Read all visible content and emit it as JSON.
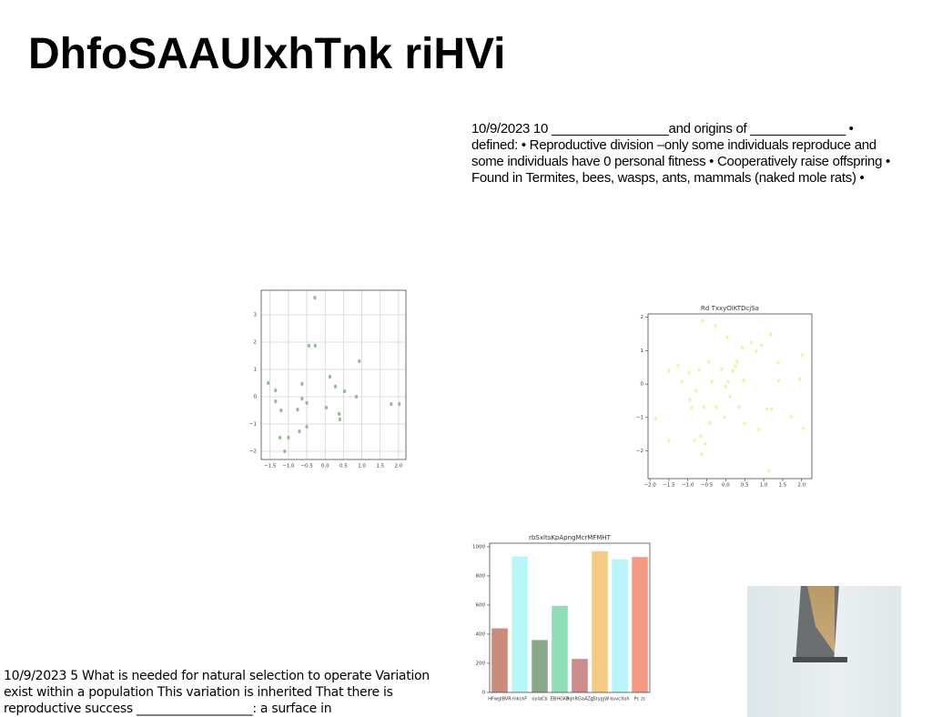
{
  "title": "DhfoSAAUlxhTnk riHVi",
  "text_right": [
    "10/9/2023 10 ________________and origins of _____________ •",
    "defined: • Reproductive division –only some individuals reproduce and",
    "some individuals have 0 personal fitness • Cooperatively raise offspring •",
    "Found in Termites, bees, wasps, ants, mammals (naked mole rats) •"
  ],
  "text_left": [
    "10/9/2023 5 What is needed for natural selection to operate Variation",
    "exist within a population This variation is inherited That there is",
    "reproductive success ___________________: a surface in"
  ],
  "chart_data": [
    {
      "type": "scatter",
      "color": "#8fbf8f",
      "grid": true,
      "xlim": [
        -1.74,
        2.2
      ],
      "ylim": [
        -2.3,
        3.9
      ],
      "xticks": [
        {
          "value": -1.5,
          "label": "−1.5"
        },
        {
          "value": -1.0,
          "label": "−1.0"
        },
        {
          "value": -0.5,
          "label": "−0.5"
        },
        {
          "value": 0,
          "label": "0.0"
        },
        0.5,
        {
          "value": 1,
          "label": "1.0"
        },
        1.5,
        {
          "value": 2,
          "label": "2.0"
        }
      ],
      "yticks": [
        {
          "value": -2,
          "label": "−2"
        },
        {
          "value": -1,
          "label": "−1"
        },
        0,
        1,
        2,
        3
      ],
      "x": [
        -0.28,
        -1.55,
        -1.35,
        -1.35,
        -1.2,
        -1.23,
        -1.0,
        -1.1,
        -0.7,
        -0.75,
        -0.63,
        -0.63,
        -0.5,
        -0.5,
        -0.44,
        -0.27,
        0.03,
        0.13,
        0.28,
        0.38,
        0.4,
        0.53,
        0.85,
        0.93,
        1.8,
        2.02
      ],
      "y": [
        3.63,
        0.5,
        0.23,
        -0.17,
        -0.5,
        -1.5,
        -1.5,
        -2.0,
        -1.27,
        -0.47,
        0.47,
        -0.07,
        -0.23,
        -1.1,
        1.87,
        1.87,
        -0.4,
        0.73,
        0.37,
        -0.63,
        -0.83,
        0.2,
        0,
        1.3,
        -0.27,
        -0.27
      ]
    },
    {
      "type": "scatter",
      "title": "Rd TxxyOlKTDcjSa",
      "color": "#eef5a0",
      "grid": false,
      "xlim": [
        -2.05,
        2.27
      ],
      "ylim": [
        -2.83,
        2.1
      ],
      "xticks": [
        {
          "value": -2,
          "label": "−2.0"
        },
        {
          "value": -1.5,
          "label": "−1.5"
        },
        {
          "value": -1,
          "label": "−1.0"
        },
        {
          "value": -0.5,
          "label": "−0.5"
        },
        {
          "value": 0,
          "label": "0.0"
        },
        0.5,
        {
          "value": 1,
          "label": "1.0"
        },
        1.5,
        {
          "value": 2,
          "label": "2.0"
        }
      ],
      "yticks": [
        {
          "value": -2,
          "label": "−2"
        },
        {
          "value": -1,
          "label": "−1"
        },
        0,
        1,
        2
      ],
      "x": [
        -1.85,
        -1.5,
        -1.5,
        -1.26,
        -1.16,
        -0.97,
        -0.95,
        -0.9,
        -0.83,
        -0.78,
        -0.7,
        -0.66,
        -0.64,
        -0.61,
        -0.57,
        -0.54,
        -0.45,
        -0.42,
        -0.37,
        -0.27,
        -0.25,
        -0.11,
        -0.04,
        -0.01,
        0.04,
        0.06,
        0.11,
        0.18,
        0.25,
        0.3,
        0.35,
        0.44,
        0.47,
        0.49,
        0.68,
        0.8,
        0.87,
        0.94,
        1.09,
        1.18,
        1.14,
        1.21,
        1.38,
        1.4,
        1.73,
        1.95,
        2.02,
        2.04
      ],
      "y": [
        -1.02,
        0.39,
        -1.7,
        0.56,
        0.07,
        0.34,
        -0.48,
        -0.72,
        -1.68,
        -0.2,
        0.42,
        -1.56,
        -2.1,
        1.89,
        -0.69,
        -1.78,
        0.67,
        -1.16,
        0.07,
        1.75,
        -0.69,
        0.45,
        -0.99,
        -0.07,
        1.4,
        0.07,
        -0.37,
        0.39,
        0.53,
        0.67,
        -0.69,
        1.1,
        0.12,
        -1.18,
        1.24,
        0.99,
        -1.36,
        1.16,
        -0.75,
        1.48,
        -2.6,
        -0.75,
        0.64,
        0.1,
        -0.97,
        0.15,
        0.88,
        -1.32
      ]
    },
    {
      "type": "bar",
      "title": "rbSxltsKpApngMcrMFMHT",
      "grid": false,
      "ylim": [
        0,
        1025
      ],
      "yticks": [
        0,
        200,
        400,
        600,
        800,
        1000
      ],
      "categories": [
        "HFwgIBVR",
        "mkckF",
        "oylaCb",
        "EBHGKP",
        "bqhRGaAZg",
        "cStyjgW",
        "kuvcXoh",
        "Pc zc"
      ],
      "values": [
        440,
        935,
        360,
        595,
        230,
        970,
        915,
        930
      ],
      "colors": [
        "#c98c78",
        "#b8f7f7",
        "#8aa98a",
        "#8fdeb8",
        "#cc8c8c",
        "#f5cc82",
        "#b8f5f8",
        "#f59a82"
      ]
    }
  ]
}
